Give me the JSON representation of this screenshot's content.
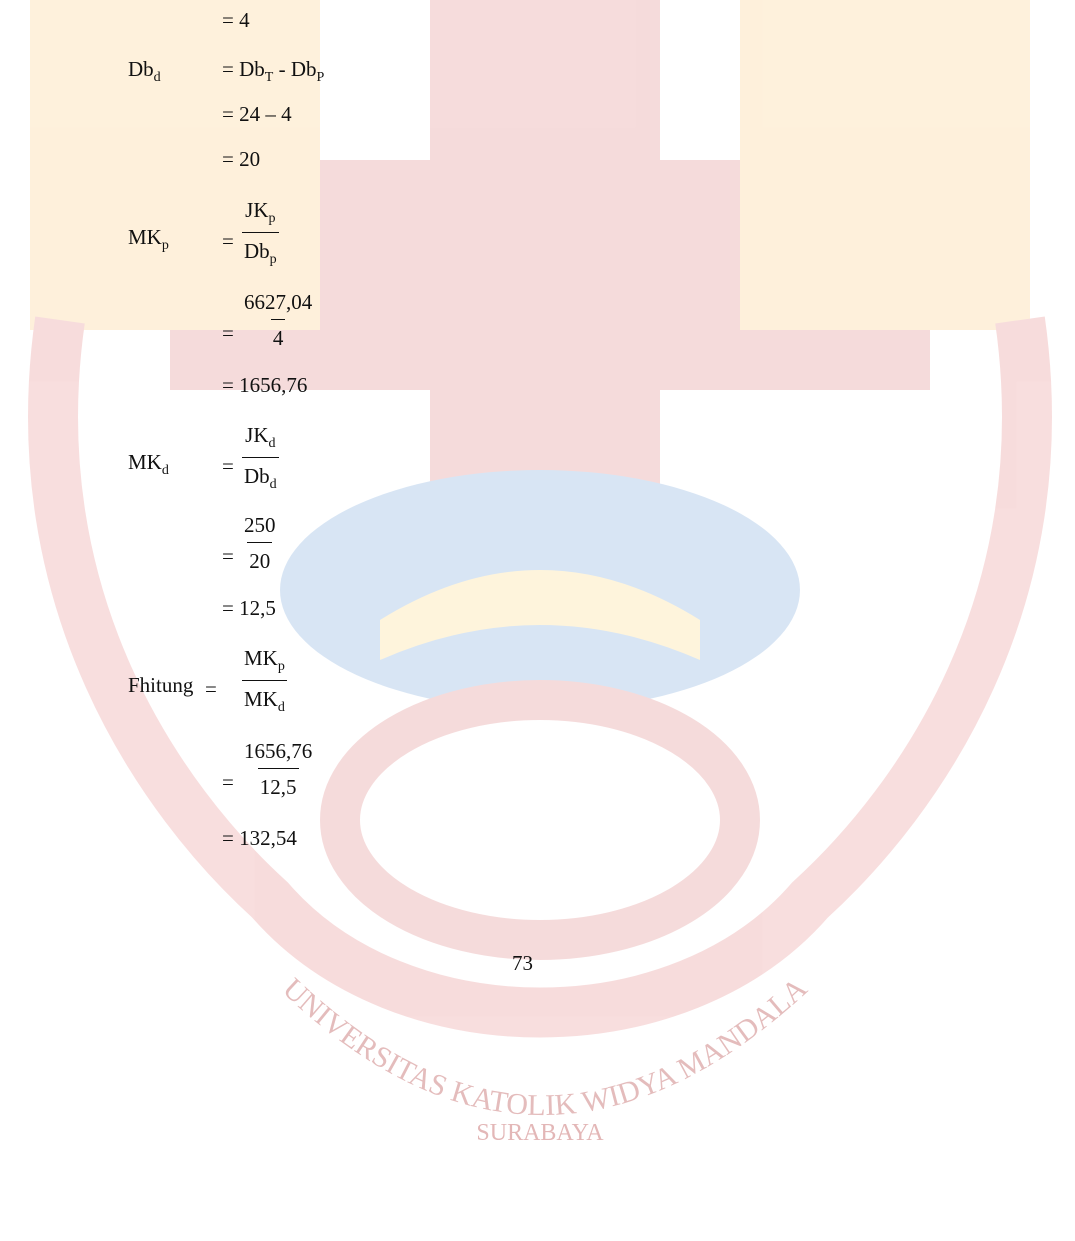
{
  "rows": [
    {
      "expr": [
        {
          "text": "= 4"
        }
      ]
    },
    {
      "label": {
        "base": "Db",
        "sub": "d"
      },
      "expr": [
        {
          "text": "= Db"
        },
        {
          "sub": "T"
        },
        {
          "text": " - Db"
        },
        {
          "sub": "P"
        }
      ]
    },
    {
      "expr": [
        {
          "text": "= 24 – 4"
        }
      ]
    },
    {
      "expr": [
        {
          "text": "= 20"
        }
      ]
    },
    {
      "label": {
        "base": "MK",
        "sub": "p"
      },
      "eq": "=",
      "num": {
        "base": "JK",
        "sub": "p"
      },
      "den": {
        "base": "Db",
        "sub": "p"
      }
    },
    {
      "eq": "=",
      "num": {
        "base": "6627,04"
      },
      "den": {
        "base": "4"
      }
    },
    {
      "expr": [
        {
          "text": "= 1656,76"
        }
      ]
    },
    {
      "label": {
        "base": "MK",
        "sub": "d"
      },
      "eq": "=",
      "num": {
        "base": "JK",
        "sub": "d"
      },
      "den": {
        "base": "Db",
        "sub": "d"
      }
    },
    {
      "eq": "=",
      "num": {
        "base": "250"
      },
      "den": {
        "base": "20"
      }
    },
    {
      "expr": [
        {
          "text": "= 12,5"
        }
      ]
    },
    {
      "label": {
        "base": "Fhitung"
      },
      "eq": "=",
      "num": {
        "base": "MK",
        "sub": "p"
      },
      "den": {
        "base": "MK",
        "sub": "d"
      }
    },
    {
      "eq": "=",
      "num": {
        "base": "1656,76"
      },
      "den": {
        "base": "12,5"
      }
    },
    {
      "expr": [
        {
          "text": "= 132,54"
        }
      ]
    }
  ],
  "page_number": "73",
  "watermark": {
    "arc_text": "UNIVERSITAS KATOLIK WIDYA MANDALA",
    "city": "SURABAYA"
  }
}
